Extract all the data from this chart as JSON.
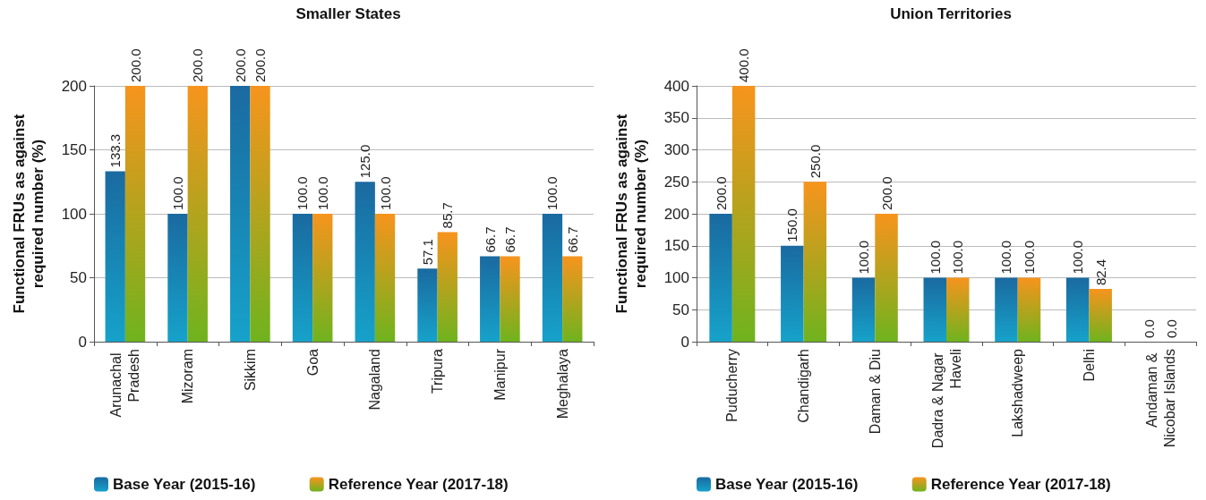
{
  "chart_data": [
    {
      "type": "bar",
      "title": "Smaller States",
      "ylabel": "Functional FRUs as against\nrequired number (%)",
      "categories": [
        "Arunachal Pradesh",
        "Mizoram",
        "Sikkim",
        "Goa",
        "Nagaland",
        "Tripura",
        "Manipur",
        "Meghalaya"
      ],
      "series": [
        {
          "name": "Base Year (2015-16)",
          "color": "#1a6aa0",
          "values": [
            133.3,
            100,
            200,
            100,
            125,
            57.1,
            66.7,
            100
          ],
          "value_labels": [
            "133.3",
            "100.0",
            "200.0",
            "100.0",
            "125.0",
            "57.1",
            "66.7",
            "100.0"
          ]
        },
        {
          "name": "Reference Year (2017-18)",
          "color": "#f7941d",
          "values": [
            200,
            200,
            200,
            100,
            100,
            85.7,
            66.7,
            66.7
          ],
          "value_labels": [
            "200.0",
            "200.0",
            "200.0",
            "100.0",
            "100.0",
            "85.7",
            "66.7",
            "66.7"
          ]
        }
      ],
      "ylim": [
        0,
        200
      ],
      "yticks": [
        0,
        50,
        100,
        150,
        200
      ],
      "grid": "y",
      "legend": "bottom"
    },
    {
      "type": "bar",
      "title": "Union Territories",
      "ylabel": "Functional FRUs as against\nrequired number (%)",
      "categories": [
        "Puducherry",
        "Chandigarh",
        "Daman & Diu",
        "Dadra & Nagar Haveli",
        "Lakshadweep",
        "Delhi",
        "Andaman & Nicobar Islands"
      ],
      "series": [
        {
          "name": "Base Year (2015-16)",
          "color": "#1a6aa0",
          "values": [
            200,
            150,
            100,
            100,
            100,
            100,
            0
          ],
          "value_labels": [
            "200.0",
            "150.0",
            "100.0",
            "100.0",
            "100.0",
            "100.0",
            "0.0"
          ]
        },
        {
          "name": "Reference Year (2017-18)",
          "color": "#f7941d",
          "values": [
            400,
            250,
            200,
            100,
            100,
            82.4,
            0
          ],
          "value_labels": [
            "400.0",
            "250.0",
            "200.0",
            "100.0",
            "100.0",
            "82.4",
            "0.0"
          ]
        }
      ],
      "ylim": [
        0,
        400
      ],
      "yticks": [
        0,
        50,
        100,
        150,
        200,
        250,
        300,
        350,
        400
      ],
      "grid": "y",
      "legend": "bottom"
    }
  ]
}
